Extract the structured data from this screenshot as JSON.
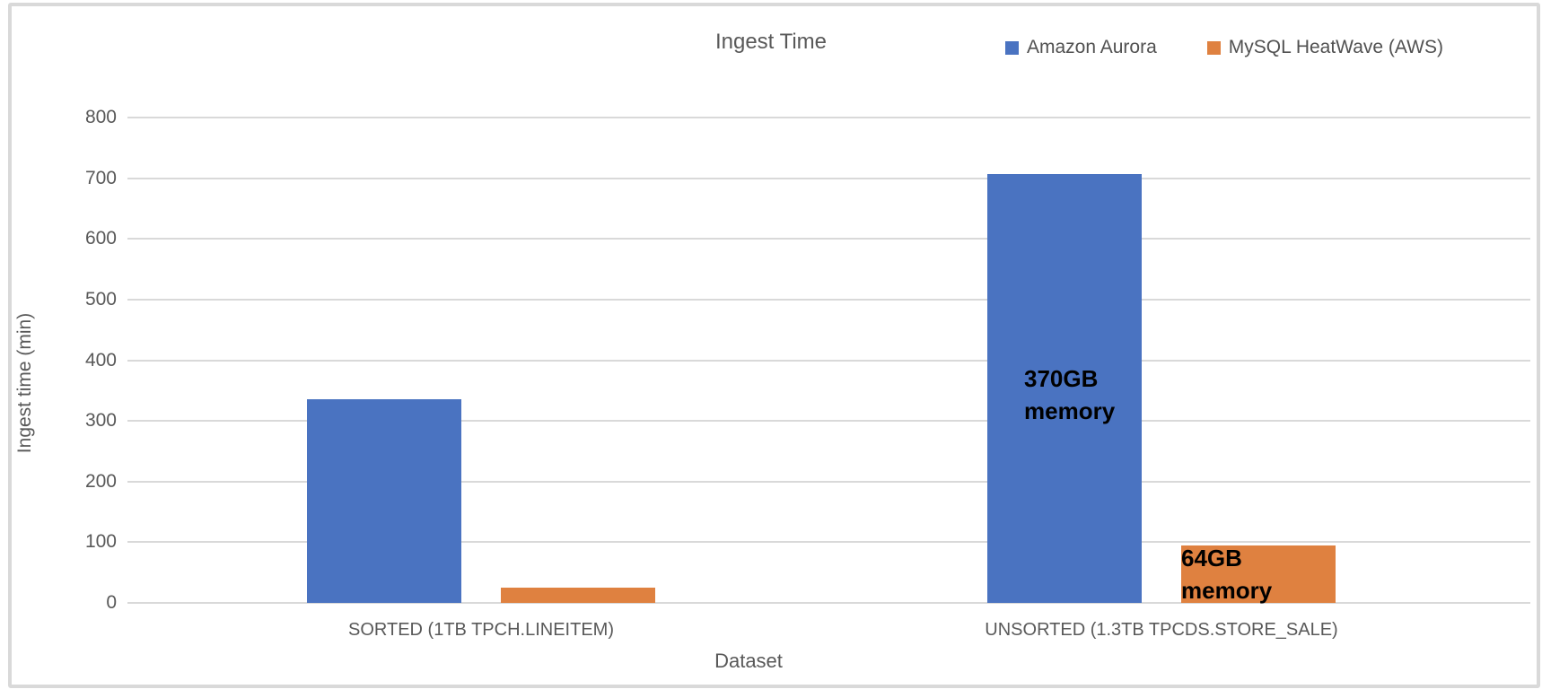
{
  "chart_data": {
    "type": "bar",
    "title": "Ingest Time",
    "xlabel": "Dataset",
    "ylabel": "Ingest time (min)",
    "categories": [
      "SORTED (1TB TPCH.LINEITEM)",
      "UNSORTED (1.3TB TPCDS.STORE_SALE)"
    ],
    "series": [
      {
        "name": "Amazon Aurora",
        "color": "#4a73c1",
        "values": [
          335,
          707
        ]
      },
      {
        "name": "MySQL HeatWave (AWS)",
        "color": "#df8140",
        "values": [
          25,
          94
        ]
      }
    ],
    "ylim": [
      0,
      800
    ],
    "yticks": [
      0,
      100,
      200,
      300,
      400,
      500,
      600,
      700,
      800
    ],
    "grid": true,
    "legend_position": "top-right",
    "annotations": [
      {
        "text_lines": [
          "370GB",
          "memory"
        ],
        "series": 0,
        "category": 1
      },
      {
        "text_lines": [
          "64GB memory"
        ],
        "series": 1,
        "category": 1
      }
    ],
    "colors": {
      "gridline": "#d9d9d9",
      "axis_text": "#595959",
      "annotation_text": "#000000",
      "frame_border": "#d9d9d9",
      "background": "#ffffff"
    }
  }
}
